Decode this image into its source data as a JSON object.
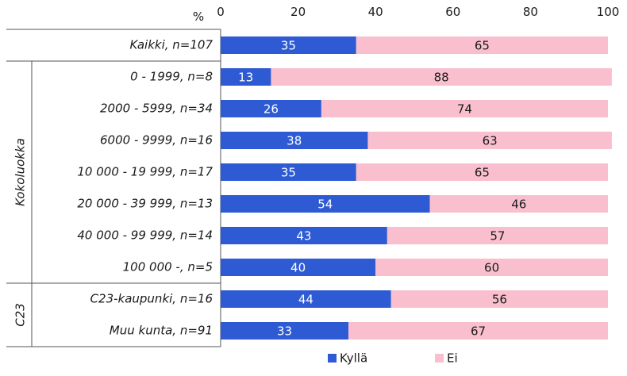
{
  "chart_data": {
    "type": "bar",
    "orientation": "horizontal",
    "stacked": true,
    "unit_label": "%",
    "xlim": [
      0,
      100
    ],
    "x_ticks": [
      0,
      20,
      40,
      60,
      80,
      100
    ],
    "grid": false,
    "legend_position": "bottom",
    "categories": [
      "Kaikki, n=107",
      "0 - 1999, n=8",
      "2000 - 5999, n=34",
      "6000 - 9999, n=16",
      "10 000 - 19 999, n=17",
      "20 000 - 39 999, n=13",
      "40 000 - 99 999, n=14",
      "100 000 -, n=5",
      "C23-kaupunki, n=16",
      "Muu kunta, n=91"
    ],
    "groups": [
      {
        "label": "Kokoluokka",
        "categories": [
          1,
          2,
          3,
          4,
          5,
          6,
          7
        ]
      },
      {
        "label": "C23",
        "categories": [
          8,
          9
        ]
      }
    ],
    "series": [
      {
        "name": "Kyllä",
        "color": "#2e5bd4",
        "label_color": "#ffffff",
        "values": [
          35,
          13,
          26,
          38,
          35,
          54,
          43,
          40,
          44,
          33
        ]
      },
      {
        "name": "Ei",
        "color": "#f9bfcf",
        "label_color": "#1a1a1a",
        "values": [
          65,
          88,
          74,
          63,
          65,
          46,
          57,
          60,
          56,
          67
        ]
      }
    ]
  }
}
